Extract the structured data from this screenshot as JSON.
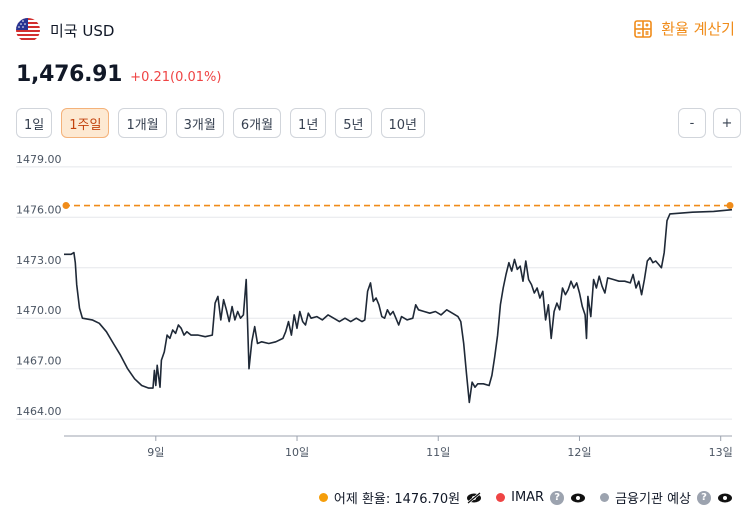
{
  "header": {
    "currency_name": "미국 USD",
    "calculator_label": "환율 계산기",
    "flag_icon": "us-flag-icon",
    "calculator_icon": "calculator-icon"
  },
  "price": {
    "current": "1,476.91",
    "change": "+0.21(0.01%)"
  },
  "periods": [
    {
      "label": "1일",
      "active": false
    },
    {
      "label": "1주일",
      "active": true
    },
    {
      "label": "1개월",
      "active": false
    },
    {
      "label": "3개월",
      "active": false
    },
    {
      "label": "6개월",
      "active": false
    },
    {
      "label": "1년",
      "active": false
    },
    {
      "label": "5년",
      "active": false
    },
    {
      "label": "10년",
      "active": false
    }
  ],
  "zoom": {
    "out_label": "-",
    "in_label": "+"
  },
  "colors": {
    "accent": "#f08c1a",
    "line": "#1f2937",
    "positive": "#ef4444",
    "imar": "#ef4444",
    "institution": "#9ca3af"
  },
  "chart_data": {
    "type": "line",
    "y_ticks": [
      "1479.00",
      "1476.00",
      "1473.00",
      "1470.00",
      "1467.00",
      "1464.00"
    ],
    "y_tick_values": [
      1479,
      1476,
      1473,
      1470,
      1467,
      1464
    ],
    "ylim": [
      1463,
      1480
    ],
    "x_ticks": [
      "9일",
      "10일",
      "11일",
      "12일",
      "13일"
    ],
    "x_tick_values": [
      9,
      10,
      11,
      12,
      13
    ],
    "xlim": [
      8.35,
      13.08
    ],
    "reference_line": {
      "label": "어제 환율",
      "value": 1476.7
    },
    "series": [
      {
        "points": [
          [
            8.35,
            1473.8
          ],
          [
            8.4,
            1473.8
          ],
          [
            8.42,
            1473.9
          ],
          [
            8.43,
            1473.3
          ],
          [
            8.44,
            1472.0
          ],
          [
            8.46,
            1470.6
          ],
          [
            8.48,
            1470.0
          ],
          [
            8.55,
            1469.9
          ],
          [
            8.6,
            1469.7
          ],
          [
            8.65,
            1469.2
          ],
          [
            8.7,
            1468.5
          ],
          [
            8.75,
            1467.8
          ],
          [
            8.8,
            1467.0
          ],
          [
            8.85,
            1466.4
          ],
          [
            8.9,
            1466.0
          ],
          [
            8.95,
            1465.85
          ],
          [
            8.98,
            1465.85
          ],
          [
            8.99,
            1466.9
          ],
          [
            9.0,
            1466.0
          ],
          [
            9.01,
            1467.2
          ],
          [
            9.03,
            1465.9
          ],
          [
            9.04,
            1467.5
          ],
          [
            9.06,
            1468.0
          ],
          [
            9.08,
            1469.0
          ],
          [
            9.1,
            1468.8
          ],
          [
            9.12,
            1469.3
          ],
          [
            9.14,
            1469.1
          ],
          [
            9.16,
            1469.6
          ],
          [
            9.18,
            1469.4
          ],
          [
            9.2,
            1469.0
          ],
          [
            9.22,
            1469.2
          ],
          [
            9.25,
            1469.0
          ],
          [
            9.3,
            1469.0
          ],
          [
            9.35,
            1468.9
          ],
          [
            9.4,
            1469.0
          ],
          [
            9.42,
            1470.9
          ],
          [
            9.44,
            1471.3
          ],
          [
            9.46,
            1469.9
          ],
          [
            9.48,
            1471.1
          ],
          [
            9.5,
            1470.5
          ],
          [
            9.52,
            1469.8
          ],
          [
            9.54,
            1470.7
          ],
          [
            9.56,
            1469.9
          ],
          [
            9.58,
            1470.4
          ],
          [
            9.6,
            1470.0
          ],
          [
            9.62,
            1470.2
          ],
          [
            9.64,
            1472.3
          ],
          [
            9.66,
            1467.0
          ],
          [
            9.68,
            1468.6
          ],
          [
            9.7,
            1469.5
          ],
          [
            9.72,
            1468.5
          ],
          [
            9.75,
            1468.6
          ],
          [
            9.8,
            1468.5
          ],
          [
            9.85,
            1468.6
          ],
          [
            9.9,
            1468.8
          ],
          [
            9.92,
            1469.2
          ],
          [
            9.94,
            1469.8
          ],
          [
            9.96,
            1469.0
          ],
          [
            9.98,
            1470.2
          ],
          [
            10.0,
            1469.4
          ],
          [
            10.02,
            1470.4
          ],
          [
            10.04,
            1469.8
          ],
          [
            10.06,
            1469.6
          ],
          [
            10.08,
            1470.3
          ],
          [
            10.1,
            1470.0
          ],
          [
            10.14,
            1470.1
          ],
          [
            10.18,
            1469.9
          ],
          [
            10.22,
            1470.2
          ],
          [
            10.26,
            1470.0
          ],
          [
            10.3,
            1469.8
          ],
          [
            10.34,
            1470.0
          ],
          [
            10.38,
            1469.8
          ],
          [
            10.42,
            1470.0
          ],
          [
            10.46,
            1469.8
          ],
          [
            10.48,
            1469.9
          ],
          [
            10.5,
            1471.6
          ],
          [
            10.52,
            1472.1
          ],
          [
            10.54,
            1471.0
          ],
          [
            10.56,
            1471.2
          ],
          [
            10.58,
            1470.8
          ],
          [
            10.6,
            1470.1
          ],
          [
            10.62,
            1470.0
          ],
          [
            10.64,
            1470.5
          ],
          [
            10.66,
            1470.2
          ],
          [
            10.68,
            1470.4
          ],
          [
            10.7,
            1470.0
          ],
          [
            10.72,
            1469.6
          ],
          [
            10.74,
            1470.1
          ],
          [
            10.78,
            1469.9
          ],
          [
            10.82,
            1470.0
          ],
          [
            10.84,
            1470.8
          ],
          [
            10.86,
            1470.5
          ],
          [
            10.9,
            1470.4
          ],
          [
            10.94,
            1470.3
          ],
          [
            10.98,
            1470.4
          ],
          [
            11.02,
            1470.2
          ],
          [
            11.06,
            1470.5
          ],
          [
            11.1,
            1470.3
          ],
          [
            11.14,
            1470.1
          ],
          [
            11.16,
            1469.8
          ],
          [
            11.18,
            1468.5
          ],
          [
            11.2,
            1466.7
          ],
          [
            11.22,
            1465.0
          ],
          [
            11.24,
            1466.2
          ],
          [
            11.26,
            1465.9
          ],
          [
            11.28,
            1466.1
          ],
          [
            11.32,
            1466.1
          ],
          [
            11.36,
            1466.0
          ],
          [
            11.38,
            1466.6
          ],
          [
            11.4,
            1467.7
          ],
          [
            11.42,
            1469.0
          ],
          [
            11.44,
            1470.8
          ],
          [
            11.46,
            1471.8
          ],
          [
            11.48,
            1472.6
          ],
          [
            11.5,
            1473.3
          ],
          [
            11.52,
            1472.8
          ],
          [
            11.54,
            1473.5
          ],
          [
            11.56,
            1472.9
          ],
          [
            11.58,
            1473.1
          ],
          [
            11.6,
            1472.2
          ],
          [
            11.62,
            1473.4
          ],
          [
            11.64,
            1472.3
          ],
          [
            11.66,
            1472.0
          ],
          [
            11.68,
            1471.5
          ],
          [
            11.7,
            1471.8
          ],
          [
            11.72,
            1471.2
          ],
          [
            11.74,
            1471.6
          ],
          [
            11.76,
            1469.9
          ],
          [
            11.78,
            1470.8
          ],
          [
            11.8,
            1468.8
          ],
          [
            11.82,
            1470.4
          ],
          [
            11.84,
            1470.9
          ],
          [
            11.86,
            1470.5
          ],
          [
            11.88,
            1471.8
          ],
          [
            11.9,
            1471.4
          ],
          [
            11.92,
            1471.7
          ],
          [
            11.94,
            1472.2
          ],
          [
            11.96,
            1471.8
          ],
          [
            11.98,
            1472.1
          ],
          [
            12.0,
            1471.5
          ],
          [
            12.02,
            1470.7
          ],
          [
            12.04,
            1470.2
          ],
          [
            12.05,
            1468.8
          ],
          [
            12.06,
            1471.3
          ],
          [
            12.08,
            1470.1
          ],
          [
            12.1,
            1472.3
          ],
          [
            12.12,
            1471.8
          ],
          [
            12.14,
            1472.5
          ],
          [
            12.16,
            1471.9
          ],
          [
            12.18,
            1471.5
          ],
          [
            12.2,
            1472.4
          ],
          [
            12.24,
            1472.3
          ],
          [
            12.28,
            1472.2
          ],
          [
            12.32,
            1472.2
          ],
          [
            12.36,
            1472.1
          ],
          [
            12.38,
            1472.6
          ],
          [
            12.4,
            1471.8
          ],
          [
            12.42,
            1472.2
          ],
          [
            12.44,
            1471.4
          ],
          [
            12.46,
            1472.3
          ],
          [
            12.48,
            1473.4
          ],
          [
            12.5,
            1473.6
          ],
          [
            12.52,
            1473.3
          ],
          [
            12.54,
            1473.4
          ],
          [
            12.56,
            1473.2
          ],
          [
            12.58,
            1473.0
          ],
          [
            12.6,
            1473.9
          ],
          [
            12.62,
            1475.8
          ],
          [
            12.64,
            1476.2
          ],
          [
            12.8,
            1476.3
          ],
          [
            12.95,
            1476.35
          ],
          [
            13.08,
            1476.45
          ]
        ]
      }
    ]
  },
  "legend": {
    "yesterday_label": "어제 환율: 1476.70원",
    "imar_label": "IMAR",
    "institution_label": "금융기관 예상",
    "help_glyph": "?"
  }
}
